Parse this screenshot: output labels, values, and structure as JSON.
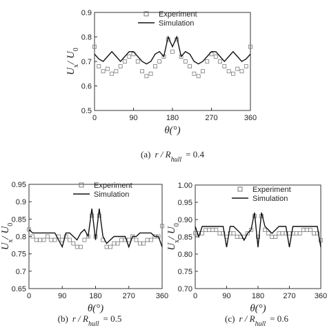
{
  "chart_data": [
    {
      "type": "line",
      "xlabel": "θ(°)",
      "ylabel": [
        "U",
        "x",
        "/ U",
        "0"
      ],
      "caption": [
        "(a)",
        "r / R",
        "hull",
        "= 0.4"
      ],
      "x": [
        0,
        10,
        20,
        30,
        40,
        50,
        60,
        70,
        80,
        90,
        100,
        110,
        120,
        130,
        140,
        150,
        160,
        170,
        180,
        190,
        200,
        210,
        220,
        230,
        240,
        250,
        260,
        270,
        280,
        290,
        300,
        310,
        320,
        330,
        340,
        350,
        360
      ],
      "xlim": [
        0,
        360
      ],
      "xticks": [
        0,
        90,
        180,
        270,
        360
      ],
      "ylim": [
        0.5,
        0.9
      ],
      "yticks": [
        0.5,
        0.6,
        0.7,
        0.8,
        0.9
      ],
      "series": [
        {
          "name": "Experiment",
          "style": "square",
          "color": "#777777",
          "values": [
            0.76,
            0.68,
            0.66,
            0.67,
            0.65,
            0.66,
            0.68,
            0.7,
            0.72,
            0.73,
            0.7,
            0.66,
            0.64,
            0.65,
            0.68,
            0.7,
            0.72,
            0.79,
            0.74,
            0.79,
            0.72,
            0.7,
            0.68,
            0.65,
            0.64,
            0.66,
            0.7,
            0.73,
            0.72,
            0.7,
            0.68,
            0.66,
            0.65,
            0.67,
            0.66,
            0.68,
            0.76
          ]
        },
        {
          "name": "Simulation",
          "style": "line",
          "color": "#111111",
          "values": [
            0.73,
            0.71,
            0.7,
            0.72,
            0.74,
            0.72,
            0.7,
            0.72,
            0.74,
            0.74,
            0.72,
            0.7,
            0.69,
            0.7,
            0.73,
            0.74,
            0.72,
            0.8,
            0.76,
            0.8,
            0.72,
            0.74,
            0.73,
            0.7,
            0.69,
            0.7,
            0.72,
            0.74,
            0.74,
            0.72,
            0.7,
            0.72,
            0.74,
            0.72,
            0.7,
            0.71,
            0.73
          ]
        }
      ]
    },
    {
      "type": "line",
      "xlabel": "θ(°)",
      "ylabel": [
        "U",
        "x",
        "/ U",
        "0"
      ],
      "caption": [
        "(b)",
        "r / R",
        "hull",
        "= 0.5"
      ],
      "x": [
        0,
        10,
        20,
        30,
        40,
        50,
        60,
        70,
        80,
        90,
        100,
        110,
        120,
        130,
        140,
        150,
        160,
        170,
        180,
        190,
        200,
        210,
        220,
        230,
        240,
        250,
        260,
        270,
        280,
        290,
        300,
        310,
        320,
        330,
        340,
        350,
        360
      ],
      "xlim": [
        0,
        360
      ],
      "xticks": [
        0,
        90,
        180,
        270,
        360
      ],
      "ylim": [
        0.65,
        0.95
      ],
      "yticks": [
        0.65,
        0.7,
        0.75,
        0.8,
        0.85,
        0.9,
        0.95
      ],
      "series": [
        {
          "name": "Experiment",
          "style": "square",
          "color": "#777777",
          "values": [
            0.82,
            0.8,
            0.79,
            0.79,
            0.79,
            0.8,
            0.79,
            0.79,
            0.8,
            0.79,
            0.8,
            0.79,
            0.78,
            0.77,
            0.77,
            0.79,
            0.8,
            0.86,
            0.8,
            0.86,
            0.79,
            0.77,
            0.77,
            0.78,
            0.78,
            0.79,
            0.79,
            0.79,
            0.8,
            0.79,
            0.78,
            0.78,
            0.79,
            0.79,
            0.8,
            0.8,
            0.83
          ]
        },
        {
          "name": "Simulation",
          "style": "line",
          "color": "#111111",
          "values": [
            0.82,
            0.81,
            0.81,
            0.81,
            0.81,
            0.81,
            0.81,
            0.81,
            0.79,
            0.77,
            0.81,
            0.81,
            0.8,
            0.79,
            0.81,
            0.82,
            0.8,
            0.88,
            0.79,
            0.88,
            0.8,
            0.78,
            0.79,
            0.8,
            0.8,
            0.8,
            0.8,
            0.77,
            0.8,
            0.8,
            0.81,
            0.81,
            0.81,
            0.81,
            0.8,
            0.8,
            0.77
          ]
        }
      ]
    },
    {
      "type": "line",
      "xlabel": "θ(°)",
      "ylabel": [
        "U",
        "x",
        "/ U",
        "0"
      ],
      "caption": [
        "(c)",
        "r / R",
        "hull",
        "= 0.6"
      ],
      "x": [
        0,
        10,
        20,
        30,
        40,
        50,
        60,
        70,
        80,
        90,
        100,
        110,
        120,
        130,
        140,
        150,
        160,
        170,
        180,
        190,
        200,
        210,
        220,
        230,
        240,
        250,
        260,
        270,
        280,
        290,
        300,
        310,
        320,
        330,
        340,
        350,
        360
      ],
      "xlim": [
        0,
        360
      ],
      "xticks": [
        0,
        90,
        180,
        270,
        360
      ],
      "ylim": [
        0.7,
        1.0
      ],
      "yticks": [
        {
          "value": 0.7,
          "label": "0.70"
        },
        {
          "value": 0.75,
          "label": "0.75"
        },
        {
          "value": 0.8,
          "label": "0.80"
        },
        {
          "value": 0.85,
          "label": "0.85"
        },
        {
          "value": 0.9,
          "label": "0.90"
        },
        {
          "value": 0.95,
          "label": "0.95"
        },
        {
          "value": 1.0,
          "label": "1.00"
        }
      ],
      "series": [
        {
          "name": "Experiment",
          "style": "square",
          "color": "#777777",
          "values": [
            0.86,
            0.86,
            0.86,
            0.87,
            0.87,
            0.87,
            0.87,
            0.86,
            0.86,
            0.85,
            0.86,
            0.86,
            0.85,
            0.85,
            0.85,
            0.86,
            0.87,
            0.91,
            0.85,
            0.91,
            0.87,
            0.86,
            0.85,
            0.85,
            0.86,
            0.86,
            0.86,
            0.86,
            0.86,
            0.86,
            0.86,
            0.87,
            0.87,
            0.87,
            0.86,
            0.86,
            0.84
          ]
        },
        {
          "name": "Simulation",
          "style": "line",
          "color": "#111111",
          "values": [
            0.88,
            0.85,
            0.88,
            0.88,
            0.88,
            0.88,
            0.88,
            0.88,
            0.88,
            0.82,
            0.88,
            0.88,
            0.87,
            0.86,
            0.84,
            0.86,
            0.87,
            0.92,
            0.82,
            0.92,
            0.88,
            0.87,
            0.86,
            0.87,
            0.88,
            0.88,
            0.88,
            0.82,
            0.88,
            0.88,
            0.88,
            0.88,
            0.88,
            0.88,
            0.88,
            0.88,
            0.82
          ]
        }
      ]
    }
  ]
}
